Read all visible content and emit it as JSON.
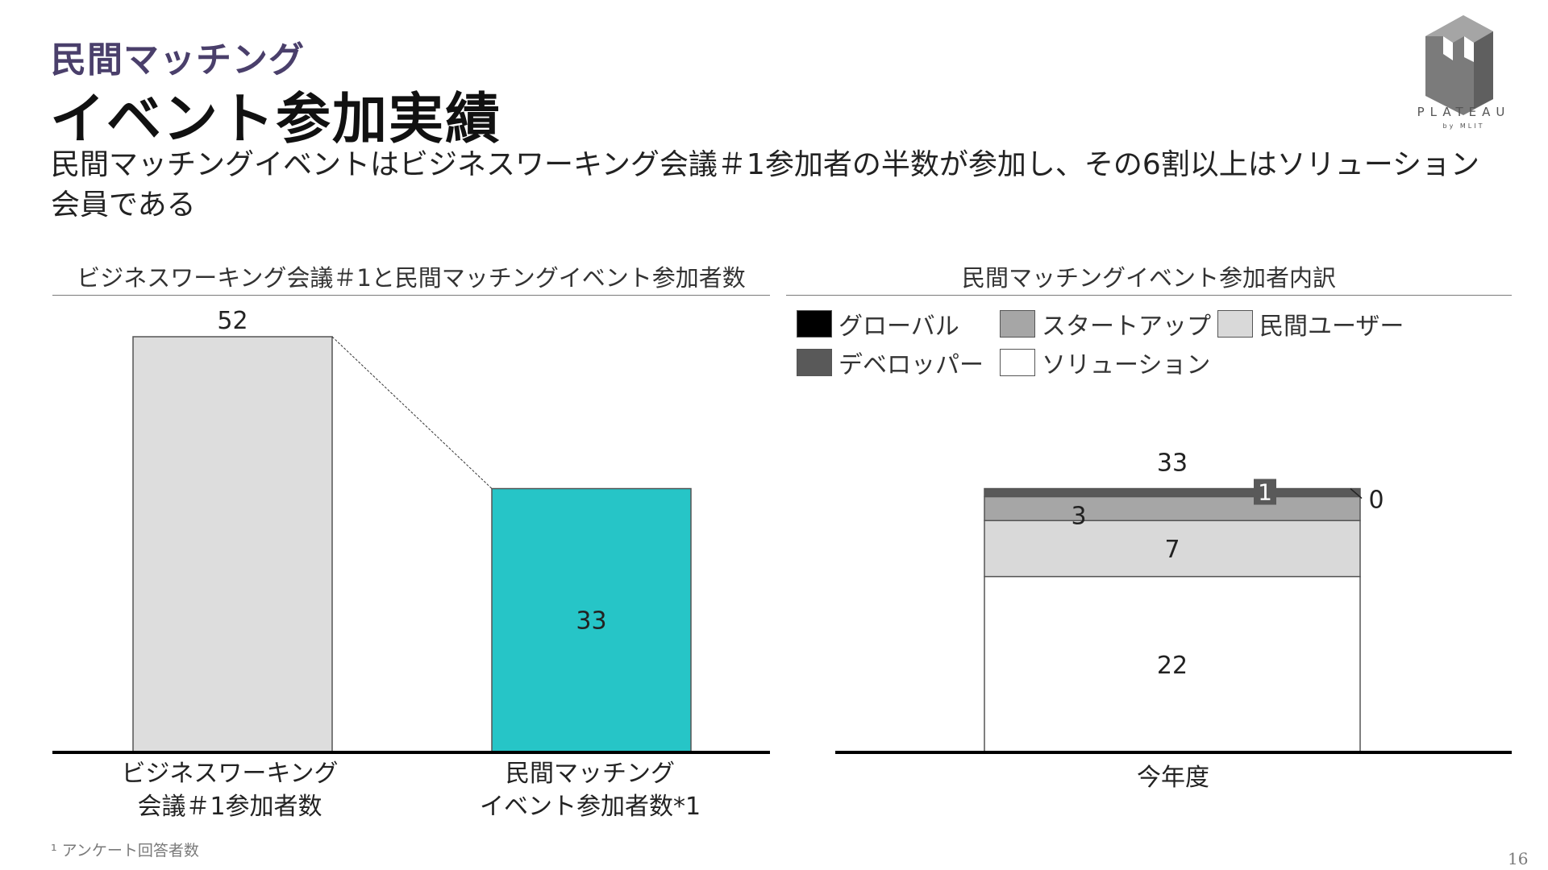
{
  "header": {
    "section_label": "民間マッチング",
    "title": "イベント参加実績",
    "lead": "民間マッチングイベントはビジネスワーキング会議＃1参加者の半数が参加し、その6割以上はソリューション会員である"
  },
  "logo": {
    "name": "PLATEAU",
    "sub": "by MLIT"
  },
  "footnote": "¹ アンケート回答者数",
  "page_number": "16",
  "colors": {
    "bar_gray": "#dddddd",
    "bar_teal": "#26c5c7",
    "black": "#000000",
    "dark_gray": "#595959",
    "mid_gray": "#a6a6a6",
    "light_gray": "#d9d9d9",
    "white": "#ffffff"
  },
  "chart_data": [
    {
      "type": "bar",
      "title": "ビジネスワーキング会議＃1と民間マッチングイベント参加者数",
      "categories": [
        "ビジネスワーキング\n会議＃1参加者数",
        "民間マッチング\nイベント参加者数*1"
      ],
      "category_lines": [
        [
          "ビジネスワーキング",
          "会議＃1参加者数"
        ],
        [
          "民間マッチング",
          "イベント参加者数*1"
        ]
      ],
      "values": [
        52,
        33
      ],
      "value_labels": [
        "52",
        "33"
      ],
      "bar_colors": [
        "#dddddd",
        "#26c5c7"
      ],
      "ylim": [
        0,
        52
      ]
    },
    {
      "type": "bar",
      "stacked": true,
      "title": "民間マッチングイベント参加者内訳",
      "categories": [
        "今年度"
      ],
      "total": 33,
      "total_label": "33",
      "legend": [
        "グローバル",
        "スタートアップ",
        "民間ユーザー",
        "デベロッパー",
        "ソリューション"
      ],
      "series": [
        {
          "name": "ソリューション",
          "values": [
            22
          ],
          "label": "22",
          "color": "#ffffff"
        },
        {
          "name": "民間ユーザー",
          "values": [
            7
          ],
          "label": "7",
          "color": "#d9d9d9"
        },
        {
          "name": "スタートアップ",
          "values": [
            3
          ],
          "label": "3",
          "color": "#a6a6a6"
        },
        {
          "name": "デベロッパー",
          "values": [
            1
          ],
          "label": "1",
          "color": "#595959"
        },
        {
          "name": "グローバル",
          "values": [
            0
          ],
          "label": "0",
          "color": "#000000"
        }
      ],
      "ylim": [
        0,
        52
      ]
    }
  ]
}
